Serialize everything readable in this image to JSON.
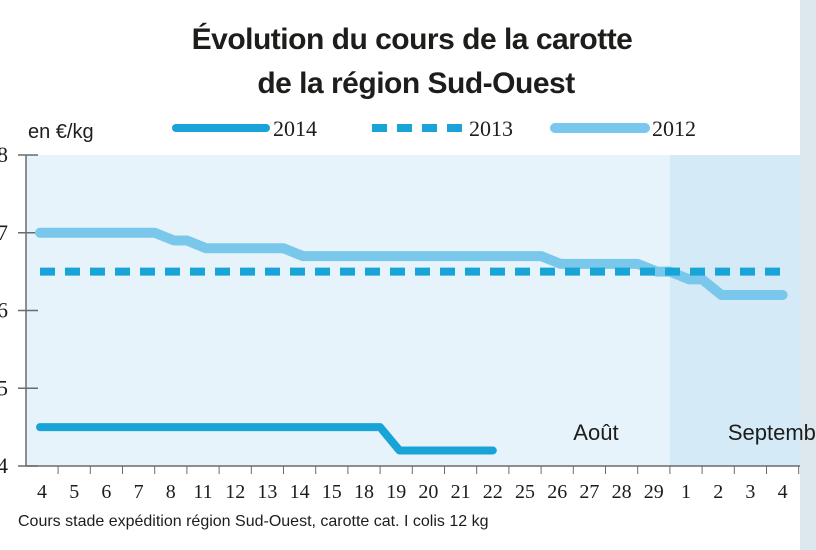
{
  "colors": {
    "c2014": "#19a4d8",
    "c2013": "#19a4d8",
    "c2012": "#79c8ec",
    "plot_bg": "#e6f3fb",
    "plot_bg_sept": "#d4eaf7"
  },
  "chart_data": {
    "type": "line",
    "title": "Évolution du cours de la carotte",
    "subtitle": "de la région Sud-Ouest",
    "ylabel": "en €/kg",
    "ylim": [
      0.4,
      0.8
    ],
    "yticks": [
      "8",
      "7",
      "6",
      "5",
      "4"
    ],
    "categories": [
      "4",
      "5",
      "6",
      "7",
      "8",
      "11",
      "12",
      "13",
      "14",
      "15",
      "18",
      "19",
      "20",
      "21",
      "22",
      "25",
      "26",
      "27",
      "28",
      "29",
      "1",
      "2",
      "3",
      "4"
    ],
    "month_labels": [
      {
        "label": "Août",
        "at_index": 16.5
      },
      {
        "label": "Septemb",
        "at_index": 21.3
      }
    ],
    "series": [
      {
        "name": "2014",
        "style": "solid-thick",
        "values": [
          0.45,
          0.45,
          0.45,
          0.45,
          0.45,
          0.45,
          0.45,
          0.45,
          0.45,
          0.45,
          0.45,
          0.42,
          0.42,
          0.42,
          0.42,
          null,
          null,
          null,
          null,
          null,
          null,
          null,
          null,
          null
        ]
      },
      {
        "name": "2013",
        "style": "dashed",
        "values": [
          0.65,
          0.65,
          0.65,
          0.65,
          0.65,
          0.65,
          0.65,
          0.65,
          0.65,
          0.65,
          0.65,
          0.65,
          0.65,
          0.65,
          0.65,
          0.65,
          0.65,
          0.65,
          0.65,
          0.65,
          0.65,
          0.65,
          0.65,
          0.65
        ]
      },
      {
        "name": "2012",
        "style": "solid-light",
        "values": [
          0.7,
          0.7,
          0.7,
          0.7,
          0.69,
          0.68,
          0.68,
          0.68,
          0.67,
          0.67,
          0.67,
          0.67,
          0.67,
          0.67,
          0.67,
          0.67,
          0.66,
          0.66,
          0.66,
          0.65,
          0.64,
          0.62,
          0.62,
          0.62
        ]
      }
    ],
    "legend": [
      "2014",
      "2013",
      "2012"
    ],
    "legend_position": "top",
    "caption": "Cours stade expédition région Sud-Ouest, carotte cat. I colis 12 kg"
  }
}
